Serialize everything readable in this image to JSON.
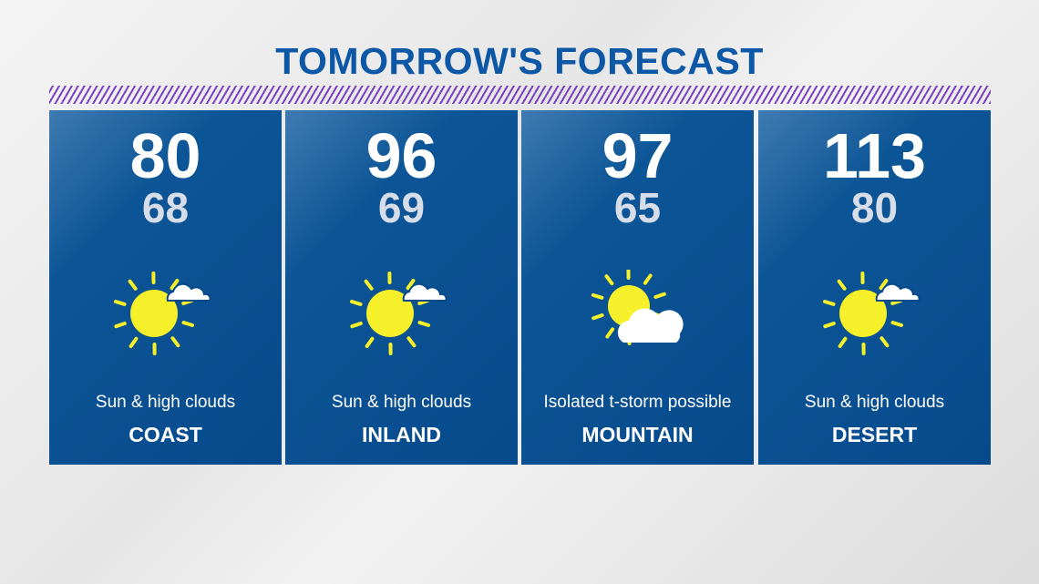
{
  "title": "TOMORROW'S FORECAST",
  "colors": {
    "title": "#0d58a6",
    "panel": "#074a8c",
    "stripe": "#7a3fc4",
    "sun": "#f5f02a"
  },
  "panels": [
    {
      "high": "80",
      "low": "68",
      "condition": "Sun & high clouds",
      "region": "COAST",
      "icon": "sun-high-clouds-icon"
    },
    {
      "high": "96",
      "low": "69",
      "condition": "Sun & high clouds",
      "region": "INLAND",
      "icon": "sun-high-clouds-icon"
    },
    {
      "high": "97",
      "low": "65",
      "condition": "Isolated t-storm possible",
      "region": "MOUNTAIN",
      "icon": "partly-cloudy-icon"
    },
    {
      "high": "113",
      "low": "80",
      "condition": "Sun & high clouds",
      "region": "DESERT",
      "icon": "sun-high-clouds-icon"
    }
  ]
}
